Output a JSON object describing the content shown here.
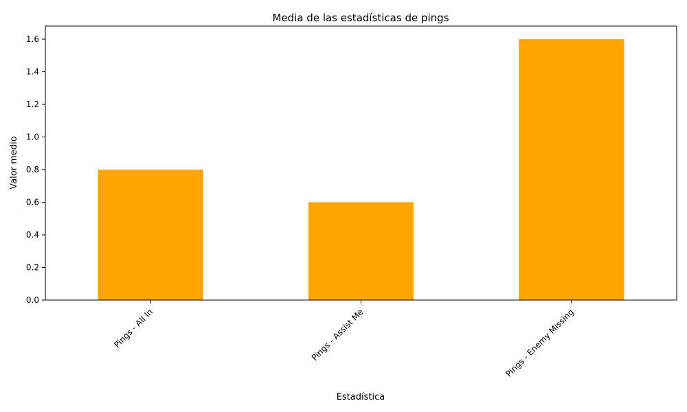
{
  "chart_data": {
    "type": "bar",
    "title": "Media de las estadísticas de pings",
    "xlabel": "Estadística",
    "ylabel": "Valor medio",
    "categories": [
      "Pings - All In",
      "Pings - Assist Me",
      "Pings - Enemy Missing"
    ],
    "values": [
      0.8,
      0.6,
      1.6
    ],
    "ylim": [
      0,
      1.68
    ],
    "yticks": [
      "0.0",
      "0.2",
      "0.4",
      "0.6",
      "0.8",
      "1.0",
      "1.2",
      "1.4",
      "1.6"
    ],
    "bar_color": "#ffa500",
    "grid": false,
    "legend": "none"
  }
}
